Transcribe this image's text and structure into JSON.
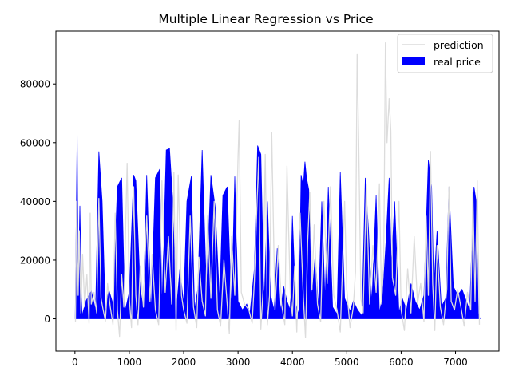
{
  "chart_data": {
    "type": "line",
    "title": "Multiple Linear Regression vs Price",
    "xlabel": "",
    "ylabel": "",
    "xlim": [
      -350,
      7800
    ],
    "ylim": [
      -11000,
      98000
    ],
    "xticks": [
      0,
      1000,
      2000,
      3000,
      4000,
      5000,
      6000,
      7000
    ],
    "yticks": [
      0,
      20000,
      40000,
      60000,
      80000
    ],
    "grid": false,
    "legend_position": "top-right",
    "series": [
      {
        "name": "prediction",
        "kind": "line",
        "color": "#dcdcdc",
        "points": [
          [
            10,
            -1200
          ],
          [
            30,
            40000
          ],
          [
            60,
            8000
          ],
          [
            80,
            30000
          ],
          [
            110,
            2000
          ],
          [
            140,
            22000
          ],
          [
            180,
            4000
          ],
          [
            220,
            15000
          ],
          [
            260,
            -1500
          ],
          [
            280,
            36000
          ],
          [
            300,
            5000
          ],
          [
            350,
            9000
          ],
          [
            400,
            2000
          ],
          [
            440,
            41000
          ],
          [
            480,
            7000
          ],
          [
            520,
            3000
          ],
          [
            560,
            -800
          ],
          [
            600,
            12000
          ],
          [
            650,
            4000
          ],
          [
            700,
            -2000
          ],
          [
            740,
            36000
          ],
          [
            780,
            3000
          ],
          [
            820,
            -6000
          ],
          [
            860,
            15000
          ],
          [
            900,
            4000
          ],
          [
            960,
            53000
          ],
          [
            1000,
            7000
          ],
          [
            1040,
            -3000
          ],
          [
            1080,
            45000
          ],
          [
            1120,
            8000
          ],
          [
            1160,
            -2000
          ],
          [
            1200,
            18000
          ],
          [
            1260,
            4000
          ],
          [
            1320,
            35000
          ],
          [
            1380,
            6000
          ],
          [
            1420,
            22000
          ],
          [
            1480,
            3000
          ],
          [
            1540,
            -2000
          ],
          [
            1600,
            47000
          ],
          [
            1660,
            9000
          ],
          [
            1720,
            28000
          ],
          [
            1780,
            5000
          ],
          [
            1820,
            50000
          ],
          [
            1860,
            -4000
          ],
          [
            1900,
            49000
          ],
          [
            1960,
            8000
          ],
          [
            2000,
            3000
          ],
          [
            2060,
            -1500
          ],
          [
            2120,
            35000
          ],
          [
            2180,
            4000
          ],
          [
            2240,
            -3000
          ],
          [
            2280,
            21000
          ],
          [
            2340,
            6000
          ],
          [
            2400,
            1000
          ],
          [
            2440,
            35000
          ],
          [
            2500,
            7000
          ],
          [
            2560,
            40000
          ],
          [
            2620,
            3000
          ],
          [
            2680,
            -2500
          ],
          [
            2740,
            20000
          ],
          [
            2800,
            5000
          ],
          [
            2840,
            -5000
          ],
          [
            2880,
            28000
          ],
          [
            2940,
            8000
          ],
          [
            3000,
            55000
          ],
          [
            3020,
            67500
          ],
          [
            3060,
            9000
          ],
          [
            3120,
            5000
          ],
          [
            3200,
            3000
          ],
          [
            3260,
            -1500
          ],
          [
            3300,
            13000
          ],
          [
            3340,
            35000
          ],
          [
            3380,
            55000
          ],
          [
            3420,
            -3500
          ],
          [
            3460,
            10000
          ],
          [
            3500,
            56000
          ],
          [
            3540,
            -2000
          ],
          [
            3580,
            8000
          ],
          [
            3620,
            63500
          ],
          [
            3680,
            3000
          ],
          [
            3740,
            25000
          ],
          [
            3800,
            5000
          ],
          [
            3860,
            -2000
          ],
          [
            3900,
            52000
          ],
          [
            3960,
            9000
          ],
          [
            4000,
            1000
          ],
          [
            4040,
            18000
          ],
          [
            4080,
            -4500
          ],
          [
            4140,
            36000
          ],
          [
            4200,
            8000
          ],
          [
            4240,
            -6500
          ],
          [
            4280,
            26000
          ],
          [
            4320,
            43000
          ],
          [
            4360,
            10000
          ],
          [
            4400,
            32000
          ],
          [
            4460,
            5000
          ],
          [
            4520,
            -1000
          ],
          [
            4580,
            40000
          ],
          [
            4640,
            12000
          ],
          [
            4700,
            45000
          ],
          [
            4760,
            8000
          ],
          [
            4820,
            3000
          ],
          [
            4880,
            -4500
          ],
          [
            4960,
            40000
          ],
          [
            5000,
            10000
          ],
          [
            5060,
            -3000
          ],
          [
            5120,
            4000
          ],
          [
            5160,
            16000
          ],
          [
            5190,
            90000
          ],
          [
            5220,
            60000
          ],
          [
            5260,
            7000
          ],
          [
            5300,
            2000
          ],
          [
            5360,
            46000
          ],
          [
            5420,
            5000
          ],
          [
            5480,
            25000
          ],
          [
            5540,
            9000
          ],
          [
            5600,
            46000
          ],
          [
            5640,
            5000
          ],
          [
            5680,
            20000
          ],
          [
            5710,
            94000
          ],
          [
            5740,
            60000
          ],
          [
            5780,
            75000
          ],
          [
            5810,
            64000
          ],
          [
            5840,
            14000
          ],
          [
            5900,
            8000
          ],
          [
            5960,
            40000
          ],
          [
            6000,
            3000
          ],
          [
            6060,
            -4000
          ],
          [
            6120,
            17000
          ],
          [
            6180,
            2000
          ],
          [
            6240,
            28000
          ],
          [
            6300,
            5000
          ],
          [
            6360,
            12000
          ],
          [
            6420,
            -1000
          ],
          [
            6460,
            35000
          ],
          [
            6500,
            8000
          ],
          [
            6540,
            57000
          ],
          [
            6580,
            12000
          ],
          [
            6620,
            -4000
          ],
          [
            6660,
            25000
          ],
          [
            6720,
            4000
          ],
          [
            6780,
            -2000
          ],
          [
            6840,
            10000
          ],
          [
            6880,
            45000
          ],
          [
            6920,
            6000
          ],
          [
            6980,
            3000
          ],
          [
            7040,
            10000
          ],
          [
            7100,
            4000
          ],
          [
            7160,
            -2500
          ],
          [
            7220,
            9000
          ],
          [
            7280,
            3000
          ],
          [
            7320,
            43000
          ],
          [
            7360,
            6000
          ],
          [
            7400,
            47000
          ],
          [
            7440,
            -2000
          ]
        ]
      },
      {
        "name": "real price",
        "kind": "area",
        "color": "#0000ff",
        "points": [
          [
            5,
            0
          ],
          [
            40,
            62800
          ],
          [
            60,
            7500
          ],
          [
            90,
            38500
          ],
          [
            130,
            1000
          ],
          [
            200,
            6000
          ],
          [
            300,
            9500
          ],
          [
            380,
            3000
          ],
          [
            440,
            57000
          ],
          [
            500,
            40000
          ],
          [
            560,
            2000
          ],
          [
            620,
            10000
          ],
          [
            700,
            5000
          ],
          [
            780,
            45000
          ],
          [
            860,
            48000
          ],
          [
            920,
            2500
          ],
          [
            1000,
            9000
          ],
          [
            1080,
            49000
          ],
          [
            1120,
            47000
          ],
          [
            1200,
            10000
          ],
          [
            1260,
            3500
          ],
          [
            1320,
            49000
          ],
          [
            1400,
            2000
          ],
          [
            1480,
            48000
          ],
          [
            1560,
            51000
          ],
          [
            1600,
            3000
          ],
          [
            1680,
            57500
          ],
          [
            1740,
            58000
          ],
          [
            1800,
            40000
          ],
          [
            1860,
            2000
          ],
          [
            1930,
            17000
          ],
          [
            2000,
            5000
          ],
          [
            2060,
            40000
          ],
          [
            2140,
            48500
          ],
          [
            2200,
            3000
          ],
          [
            2260,
            10000
          ],
          [
            2340,
            57500
          ],
          [
            2420,
            9000
          ],
          [
            2500,
            49000
          ],
          [
            2580,
            38000
          ],
          [
            2660,
            6000
          ],
          [
            2720,
            42000
          ],
          [
            2800,
            45000
          ],
          [
            2880,
            3000
          ],
          [
            2940,
            48500
          ],
          [
            3000,
            6000
          ],
          [
            3080,
            3000
          ],
          [
            3160,
            5000
          ],
          [
            3220,
            2000
          ],
          [
            3300,
            17000
          ],
          [
            3360,
            59000
          ],
          [
            3420,
            56000
          ],
          [
            3480,
            5000
          ],
          [
            3540,
            40000
          ],
          [
            3600,
            8000
          ],
          [
            3660,
            3000
          ],
          [
            3720,
            24000
          ],
          [
            3780,
            2500
          ],
          [
            3840,
            11000
          ],
          [
            3900,
            6000
          ],
          [
            3960,
            3000
          ],
          [
            4000,
            35000
          ],
          [
            4060,
            5000
          ],
          [
            4120,
            1500
          ],
          [
            4160,
            49000
          ],
          [
            4200,
            45000
          ],
          [
            4230,
            53500
          ],
          [
            4260,
            48000
          ],
          [
            4300,
            44000
          ],
          [
            4360,
            7000
          ],
          [
            4420,
            22000
          ],
          [
            4480,
            3500
          ],
          [
            4540,
            40000
          ],
          [
            4600,
            6000
          ],
          [
            4660,
            45000
          ],
          [
            4740,
            4000
          ],
          [
            4820,
            1500
          ],
          [
            4880,
            50000
          ],
          [
            4960,
            7000
          ],
          [
            5060,
            2500
          ],
          [
            5120,
            6000
          ],
          [
            5200,
            3000
          ],
          [
            5280,
            1000
          ],
          [
            5340,
            48000
          ],
          [
            5400,
            30000
          ],
          [
            5460,
            5000
          ],
          [
            5540,
            42000
          ],
          [
            5600,
            2000
          ],
          [
            5660,
            8000
          ],
          [
            5720,
            26000
          ],
          [
            5780,
            48000
          ],
          [
            5820,
            18000
          ],
          [
            5880,
            40000
          ],
          [
            5960,
            2000
          ],
          [
            6020,
            7000
          ],
          [
            6100,
            3000
          ],
          [
            6180,
            12000
          ],
          [
            6260,
            6000
          ],
          [
            6340,
            3000
          ],
          [
            6420,
            8000
          ],
          [
            6500,
            54000
          ],
          [
            6560,
            45000
          ],
          [
            6600,
            10000
          ],
          [
            6660,
            30000
          ],
          [
            6740,
            4000
          ],
          [
            6820,
            7000
          ],
          [
            6880,
            45000
          ],
          [
            6960,
            11000
          ],
          [
            7040,
            8000
          ],
          [
            7120,
            10000
          ],
          [
            7200,
            6000
          ],
          [
            7260,
            3000
          ],
          [
            7340,
            45000
          ],
          [
            7380,
            40000
          ],
          [
            7420,
            2000
          ],
          [
            7450,
            0
          ]
        ]
      }
    ]
  }
}
